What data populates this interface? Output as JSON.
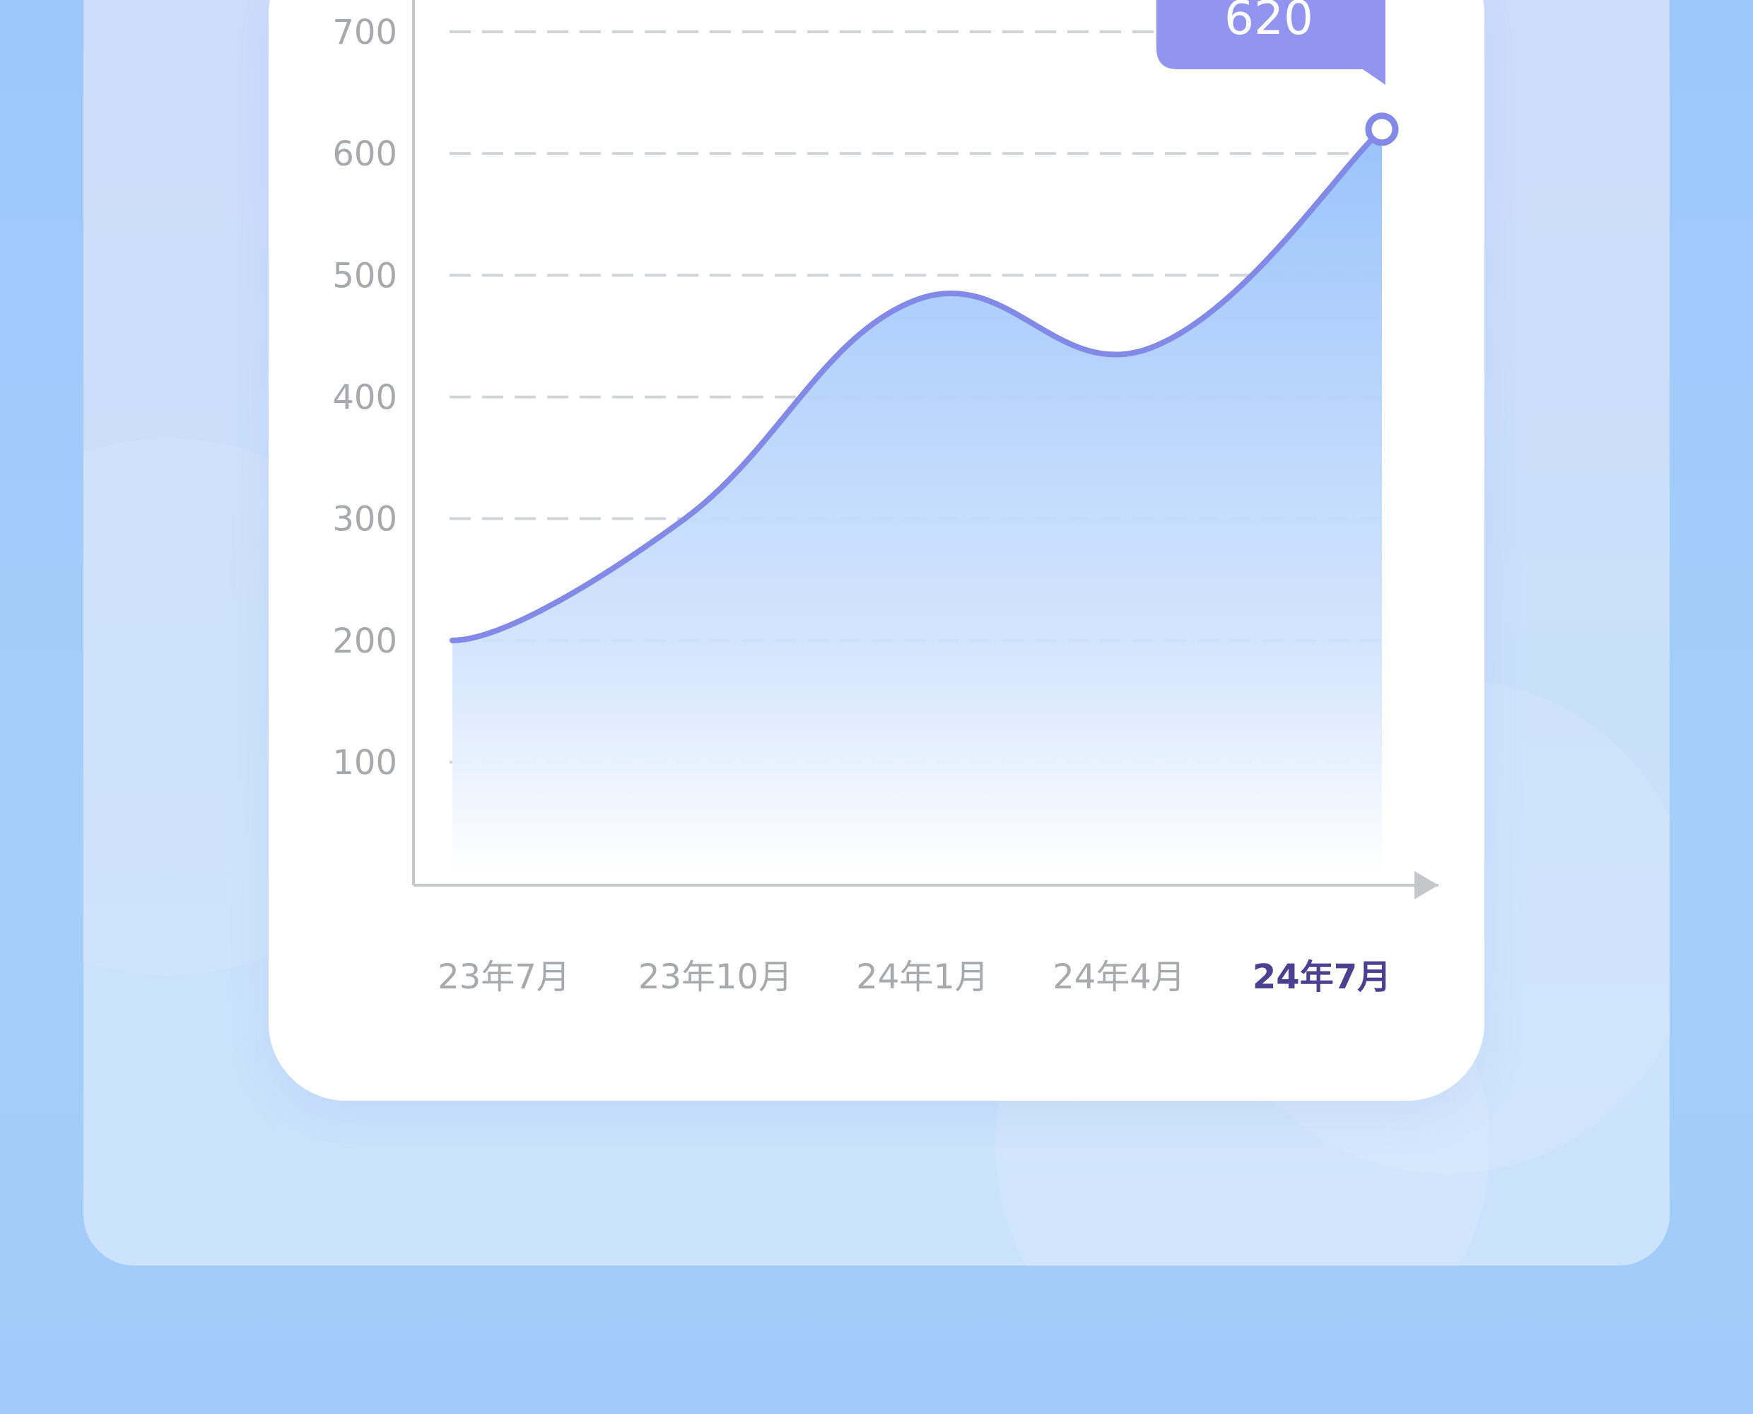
{
  "chart_data": {
    "type": "area",
    "x": [
      "23年7月",
      "23年10月",
      "24年1月",
      "24年4月",
      "24年7月"
    ],
    "series": [
      {
        "values": [
          200,
          300,
          480,
          440,
          620
        ]
      }
    ],
    "yticks": [
      100,
      200,
      300,
      400,
      500,
      600,
      700
    ],
    "ylim": [
      0,
      730
    ],
    "highlight": {
      "index": 4,
      "label": "620"
    },
    "grid": "dashed horizontal",
    "colors": {
      "line": "#8289e6",
      "fill_top": "#9ac3fb",
      "fill_bottom": "#ffffff",
      "tooltip": "#9394ef",
      "axis": "#c5c7cb",
      "tick_text": "#a7a9ad",
      "active_x_text": "#4b3f8f"
    }
  }
}
